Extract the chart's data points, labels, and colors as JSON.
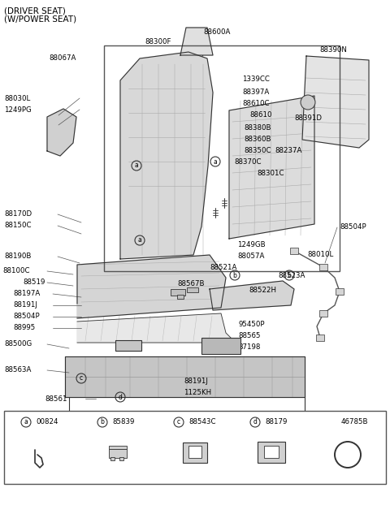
{
  "title_line1": "(DRIVER SEAT)",
  "title_line2": "(W/POWER SEAT)",
  "bg_color": "#ffffff",
  "line_color": "#333333",
  "text_color": "#000000",
  "fig_width": 4.8,
  "fig_height": 6.54,
  "dpi": 100,
  "legend_items": [
    {
      "label": "a",
      "code": "00824"
    },
    {
      "label": "b",
      "code": "85839"
    },
    {
      "label": "c",
      "code": "88543C"
    },
    {
      "label": "d",
      "code": "88179"
    },
    {
      "label": "",
      "code": "46785B"
    }
  ]
}
